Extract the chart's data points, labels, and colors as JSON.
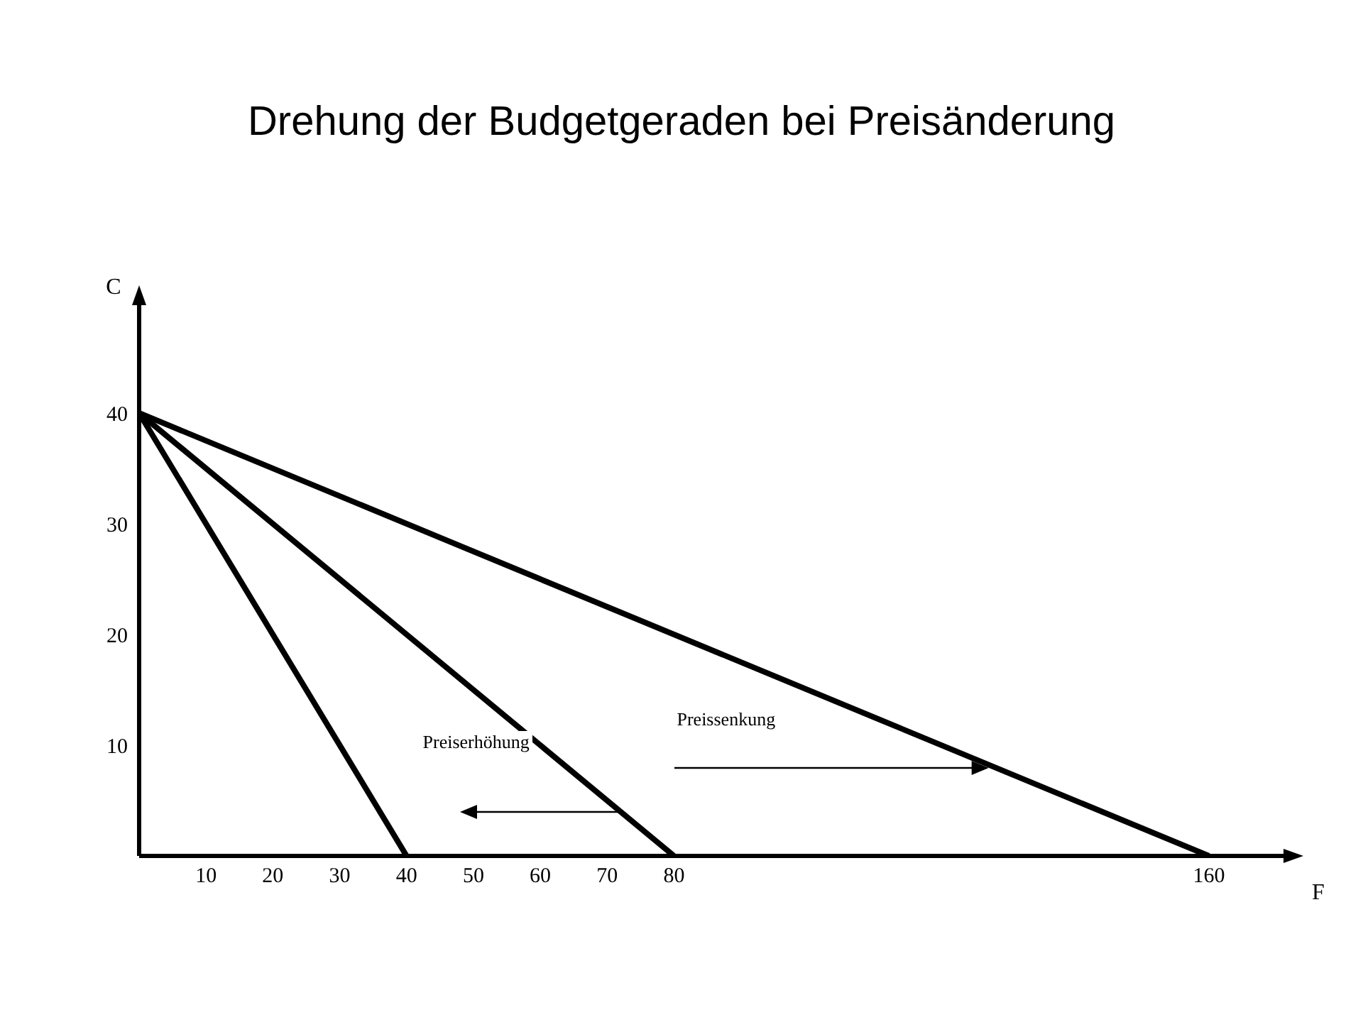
{
  "chart_data": {
    "type": "line",
    "title": "Drehung der Budgetgeraden bei Preisänderung",
    "xlabel": "F",
    "ylabel": "C",
    "series": [
      {
        "x": [
          0,
          40
        ],
        "values": [
          40,
          0
        ],
        "color": "#000000"
      },
      {
        "x": [
          0,
          80
        ],
        "values": [
          40,
          0
        ],
        "color": "#000000"
      },
      {
        "x": [
          0,
          160
        ],
        "values": [
          40,
          0
        ],
        "color": "#000000"
      }
    ],
    "xlim": [
      0,
      172
    ],
    "ylim": [
      0,
      50
    ],
    "xticks": [
      10,
      20,
      30,
      40,
      50,
      60,
      70,
      80,
      160
    ],
    "yticks": [
      10,
      20,
      30,
      40
    ],
    "annotations": [
      "Preiserhöhung",
      "Preissenkung"
    ],
    "grid": false,
    "legend": false,
    "marker": "none",
    "line_style": "solid"
  }
}
